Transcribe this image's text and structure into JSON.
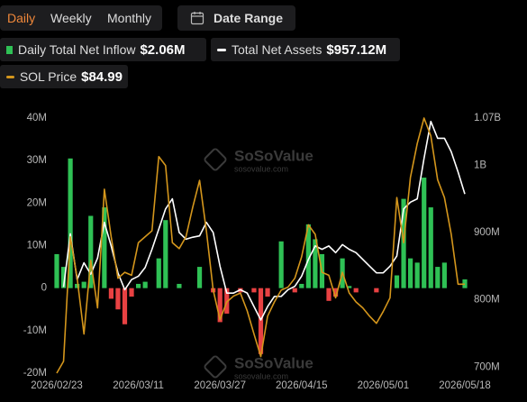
{
  "toolbar": {
    "tabs": [
      "Daily",
      "Weekly",
      "Monthly"
    ],
    "active_tab": 0,
    "date_range": "Date Range"
  },
  "chart_data": {
    "type": "combo",
    "watermarks": [
      {
        "brand": "SoSoValue",
        "site": "sosovalue.com"
      },
      {
        "brand": "SoSoValue",
        "site": "sosovalue.com"
      }
    ],
    "categories": [
      "2026/02/23",
      null,
      null,
      null,
      null,
      null,
      null,
      null,
      null,
      null,
      null,
      null,
      "2026/03/11",
      null,
      null,
      null,
      null,
      null,
      null,
      null,
      null,
      null,
      null,
      null,
      "2026/03/27",
      null,
      null,
      null,
      null,
      null,
      null,
      null,
      null,
      null,
      null,
      null,
      "2026/04/15",
      null,
      null,
      null,
      null,
      null,
      null,
      null,
      null,
      null,
      null,
      null,
      "2026/05/01",
      null,
      null,
      null,
      null,
      null,
      null,
      null,
      null,
      null,
      null,
      null,
      "2026/05/18"
    ],
    "ylim": [
      -20,
      40
    ],
    "yticks": [
      {
        "value": -20,
        "label": "-20M"
      },
      {
        "value": -10,
        "label": "-10M"
      },
      {
        "value": 0,
        "label": "0"
      },
      {
        "value": 10,
        "label": "10M"
      },
      {
        "value": 20,
        "label": "20M"
      },
      {
        "value": 30,
        "label": "30M"
      },
      {
        "value": 40,
        "label": "40M"
      }
    ],
    "y2lim": [
      691,
      1070
    ],
    "y2ticks": [
      {
        "value": 700,
        "label": "700M"
      },
      {
        "value": 800,
        "label": "800M"
      },
      {
        "value": 900,
        "label": "900M"
      },
      {
        "value": 1000,
        "label": "1B"
      },
      {
        "value": 1070,
        "label": "1.07B"
      }
    ],
    "y3lim": [
      70,
      113
    ],
    "grid": false,
    "series": [
      {
        "name": "Daily Total Net Inflow",
        "last_label": "$2.06M",
        "type": "bar",
        "color": "#2fc155",
        "negative_color": "#e84142",
        "axis": "y",
        "values": [
          8,
          5,
          30.5,
          1,
          1.5,
          17,
          0,
          19,
          -2.5,
          -5,
          -8.5,
          -2,
          1,
          1.5,
          0,
          7,
          16,
          0,
          1,
          0,
          0,
          5,
          0,
          -1,
          -8,
          -6,
          0,
          -1,
          0,
          -1,
          -15.5,
          -2,
          0,
          11,
          0,
          -1,
          1,
          15,
          11.5,
          8,
          -3,
          -2,
          7,
          0.5,
          -1,
          0,
          0,
          -1,
          0,
          0,
          3,
          21,
          7,
          6,
          26,
          19,
          5,
          6,
          0,
          0,
          2.06
        ]
      },
      {
        "name": "Total Net Assets",
        "last_label": "$957.12M",
        "type": "line",
        "color": "#ffffff",
        "axis": "y2",
        "values": [
          null,
          819,
          898,
          830,
          855,
          838,
          862,
          915,
          880,
          840,
          815,
          830,
          835,
          848,
          875,
          905,
          935,
          950,
          900,
          890,
          893,
          895,
          915,
          900,
          850,
          810,
          810,
          815,
          810,
          790,
          770,
          790,
          805,
          805,
          815,
          820,
          835,
          860,
          880,
          875,
          880,
          870,
          882,
          875,
          870,
          860,
          850,
          840,
          840,
          850,
          865,
          935,
          945,
          950,
          1010,
          1065,
          1040,
          1040,
          1020,
          990,
          957.12
        ]
      },
      {
        "name": "SOL Price",
        "last_label": "$84.99",
        "type": "line",
        "color": "#d4961c",
        "axis": "y3",
        "values": [
          70,
          72,
          93,
          86,
          76.6,
          89,
          81,
          101,
          93,
          86,
          87,
          86.5,
          92,
          93,
          94,
          106.5,
          105,
          92,
          91,
          93,
          98,
          102.5,
          94,
          84,
          79,
          82,
          83,
          83.5,
          80.5,
          76.6,
          72.8,
          79.6,
          82,
          84,
          84.5,
          86,
          89.6,
          95,
          93.4,
          87,
          86.5,
          82.7,
          87,
          83.5,
          82,
          81,
          79.6,
          78.4,
          80.4,
          82.7,
          99.6,
          92,
          103,
          108.7,
          113,
          110,
          102.6,
          99.6,
          93.4,
          85,
          84.99
        ]
      }
    ]
  }
}
